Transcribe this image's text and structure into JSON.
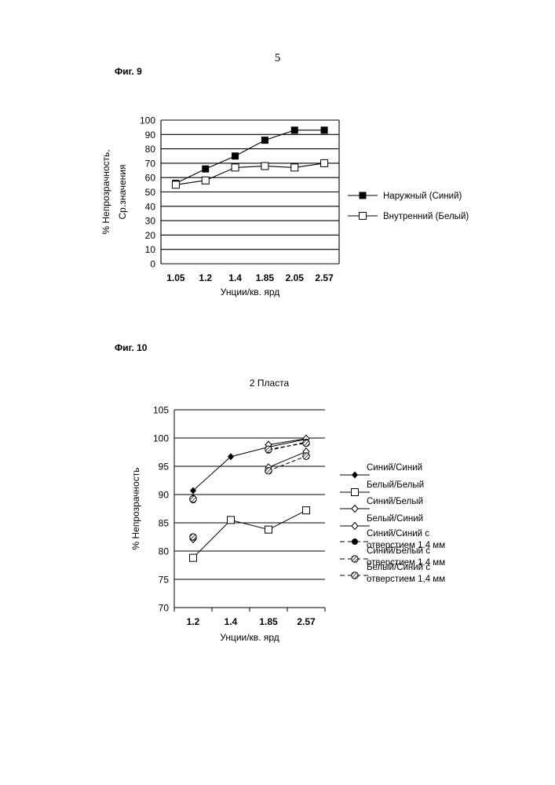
{
  "page_number": "5",
  "chart_data": [
    {
      "type": "line",
      "figure_label": "Фиг. 9",
      "title": "",
      "xlabel": "Унции/кв. ярд",
      "ylabel_line1": "% Непрозрачность,",
      "ylabel_line2": "Ср.значения",
      "categories": [
        "1.05",
        "1.2",
        "1.4",
        "1.85",
        "2.05",
        "2.57"
      ],
      "ylim": [
        0,
        100
      ],
      "yticks": [
        0,
        10,
        20,
        30,
        40,
        50,
        60,
        70,
        80,
        90,
        100
      ],
      "grid": true,
      "legend_position": "right",
      "series": [
        {
          "name": "Наружный (Синий)",
          "marker": "square-filled",
          "line": "solid",
          "values": [
            56,
            66,
            75,
            86,
            93,
            93
          ]
        },
        {
          "name": "Внутренний (Белый)",
          "marker": "square-open",
          "line": "solid",
          "values": [
            55,
            58,
            67,
            68,
            67,
            70
          ]
        }
      ]
    },
    {
      "type": "line",
      "figure_label": "Фиг. 10",
      "title": "2 Пласта",
      "xlabel": "Унции/кв. ярд",
      "ylabel": "% Непрозрачность",
      "categories": [
        "1.2",
        "1.4",
        "1.85",
        "2.57"
      ],
      "ylim": [
        70,
        105
      ],
      "yticks": [
        70,
        75,
        80,
        85,
        90,
        95,
        100,
        105
      ],
      "grid": true,
      "legend_position": "right",
      "series": [
        {
          "name": "Синий/Синий",
          "marker": "diamond-filled",
          "line": "solid",
          "values": [
            90.7,
            96.7,
            98.4,
            99.8
          ]
        },
        {
          "name": "Белый/Белый",
          "marker": "square-open",
          "line": "solid",
          "values": [
            78.8,
            85.5,
            83.8,
            87.2
          ]
        },
        {
          "name": "Синий/Белый",
          "marker": "diamond-open",
          "line": "solid",
          "values": [
            82.1,
            null,
            94.8,
            97.6
          ]
        },
        {
          "name": "Белый/Синий",
          "marker": "diamond-open",
          "line": "solid",
          "values": [
            89.4,
            null,
            98.8,
            99.9
          ]
        },
        {
          "name": "Синий/Синий с отверстием 1.4 мм",
          "legend_lines": [
            "Синий/Синий с",
            "отверстием 1.4 мм"
          ],
          "marker": "circle-filled",
          "line": "dashed",
          "values": [
            89.0,
            null,
            97.8,
            99.3
          ]
        },
        {
          "name": "Синий/Белый с отверстием 1.4 мм",
          "legend_lines": [
            "Синий/Белый с",
            "отверстием 1.4 мм"
          ],
          "marker": "circle-hatched",
          "line": "dashed",
          "values": [
            82.5,
            null,
            94.2,
            96.8
          ]
        },
        {
          "name": "Белый/Синий с отверстием 1,4 мм",
          "legend_lines": [
            "Белый/Синий с",
            "отверстием 1,4 мм"
          ],
          "marker": "circle-hatched",
          "line": "dashed",
          "values": [
            89.2,
            null,
            98.0,
            99.1
          ]
        }
      ]
    }
  ]
}
